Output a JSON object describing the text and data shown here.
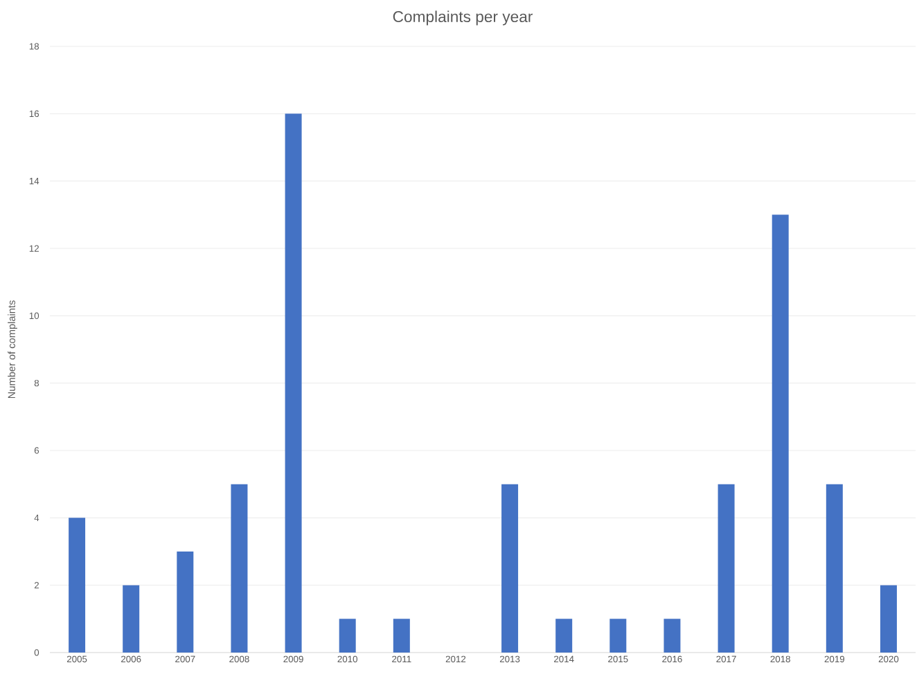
{
  "chart_data": {
    "type": "bar",
    "title": "Complaints per year",
    "ylabel": "Number of complaints",
    "categories": [
      "2005",
      "2006",
      "2007",
      "2008",
      "2009",
      "2010",
      "2011",
      "2012",
      "2013",
      "2014",
      "2015",
      "2016",
      "2017",
      "2018",
      "2019",
      "2020"
    ],
    "values": [
      4,
      2,
      3,
      5,
      16,
      1,
      1,
      0,
      5,
      1,
      1,
      1,
      5,
      13,
      5,
      2
    ],
    "color": "#4472c4",
    "ylim": [
      0,
      18
    ],
    "yticks": [
      0,
      2,
      4,
      6,
      8,
      10,
      12,
      14,
      16,
      18
    ],
    "grid": "y"
  }
}
